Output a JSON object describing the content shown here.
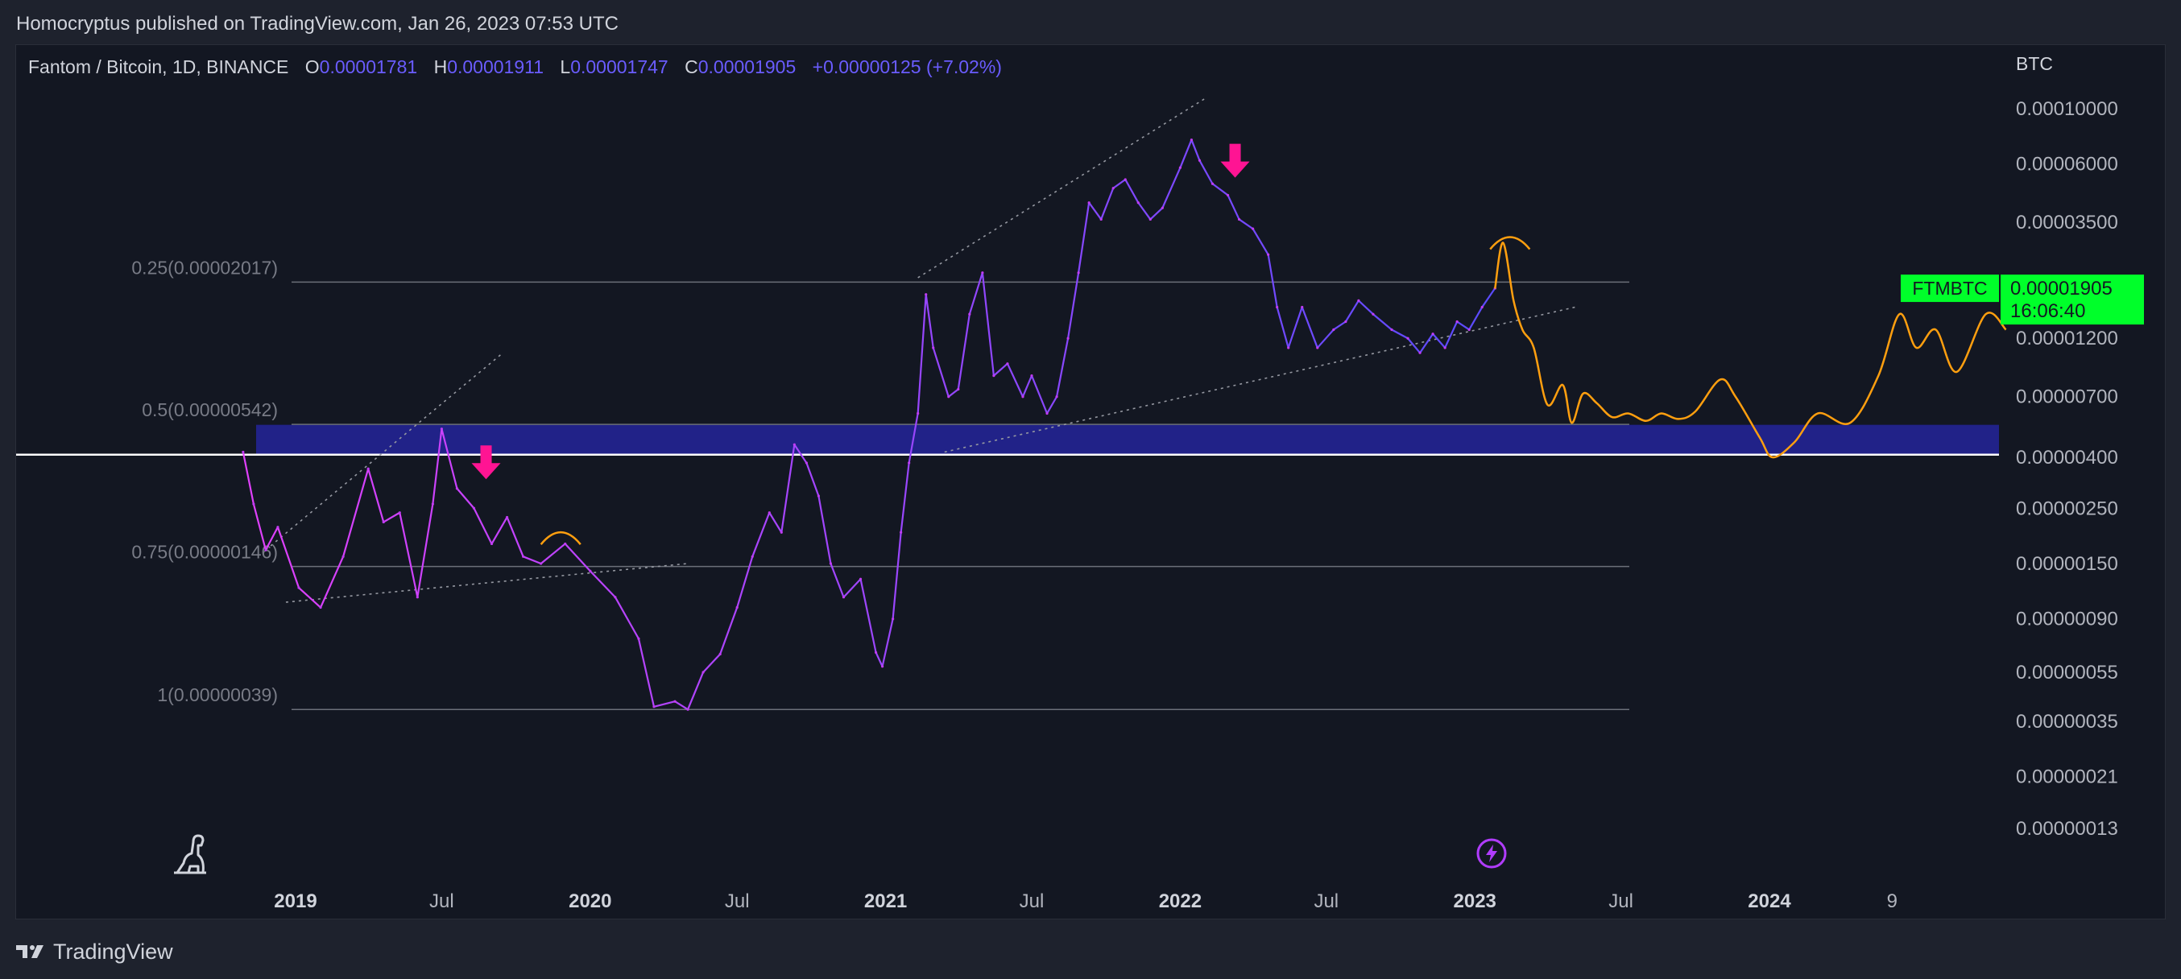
{
  "published_by": "Homocryptus published on TradingView.com, Jan 26, 2023 07:53 UTC",
  "legend": {
    "symbol": "Fantom / Bitcoin, 1D, BINANCE",
    "o_label": "O",
    "o_value": "0.00001781",
    "h_label": "H",
    "h_value": "0.00001911",
    "l_label": "L",
    "l_value": "0.00001747",
    "c_label": "C",
    "c_value": "0.00001905",
    "change": "+0.00000125 (+7.02%)"
  },
  "footer": {
    "brand": "TradingView"
  },
  "chart_data": {
    "type": "line",
    "scale": "log",
    "y_unit": "BTC",
    "y_ticks": [
      "0.00010000",
      "0.00006000",
      "0.00003500",
      "0.00001200",
      "0.00000700",
      "0.00000400",
      "0.00000250",
      "0.00000150",
      "0.00000090",
      "0.00000055",
      "0.00000035",
      "0.00000021",
      "0.00000013"
    ],
    "x_ticks": [
      {
        "label": "2019",
        "date": "2019-01-01",
        "bold": true
      },
      {
        "label": "Jul",
        "date": "2019-07-01",
        "bold": false
      },
      {
        "label": "2020",
        "date": "2020-01-01",
        "bold": true
      },
      {
        "label": "Jul",
        "date": "2020-07-01",
        "bold": false
      },
      {
        "label": "2021",
        "date": "2021-01-01",
        "bold": true
      },
      {
        "label": "Jul",
        "date": "2021-07-01",
        "bold": false
      },
      {
        "label": "2022",
        "date": "2022-01-01",
        "bold": true
      },
      {
        "label": "Jul",
        "date": "2022-07-01",
        "bold": false
      },
      {
        "label": "2023",
        "date": "2023-01-01",
        "bold": true
      },
      {
        "label": "Jul",
        "date": "2023-07-01",
        "bold": false
      },
      {
        "label": "2024",
        "date": "2024-01-01",
        "bold": true
      },
      {
        "label": "9",
        "date": "2024-06-01",
        "bold": false
      }
    ],
    "price_label": {
      "symbol": "FTMBTC",
      "value": "0.00001905",
      "countdown": "16:06:40",
      "color": "#00ff2a"
    },
    "fib_levels": [
      {
        "label": "0.25(0.00002017)",
        "price": 2.017e-05
      },
      {
        "label": "0.5(0.00000542)",
        "price": 5.42e-06
      },
      {
        "label": "0.75(0.00000146)",
        "price": 1.46e-06
      },
      {
        "label": "1(0.00000039)",
        "price": 3.9e-07
      }
    ],
    "horizontal_line": 4.1e-06,
    "support_zone": [
      4.1e-06,
      5.4e-06
    ],
    "series": [
      {
        "kind": "price",
        "color_start": "#e040fb",
        "color_end": "#5a4bff",
        "points": [
          [
            "2018-10-28",
            4.2e-06
          ],
          [
            "2018-11-10",
            2.6e-06
          ],
          [
            "2018-11-25",
            1.7e-06
          ],
          [
            "2018-12-10",
            2.1e-06
          ],
          [
            "2019-01-05",
            1.2e-06
          ],
          [
            "2019-02-01",
            1e-06
          ],
          [
            "2019-03-01",
            1.6e-06
          ],
          [
            "2019-04-01",
            3.6e-06
          ],
          [
            "2019-04-20",
            2.2e-06
          ],
          [
            "2019-05-10",
            2.4e-06
          ],
          [
            "2019-06-01",
            1.1e-06
          ],
          [
            "2019-06-20",
            2.6e-06
          ],
          [
            "2019-07-01",
            5.2e-06
          ],
          [
            "2019-07-20",
            3e-06
          ],
          [
            "2019-08-10",
            2.5e-06
          ],
          [
            "2019-09-01",
            1.8e-06
          ],
          [
            "2019-09-20",
            2.3e-06
          ],
          [
            "2019-10-10",
            1.6e-06
          ],
          [
            "2019-11-01",
            1.5e-06
          ],
          [
            "2019-12-01",
            1.8e-06
          ],
          [
            "2020-01-01",
            1.4e-06
          ],
          [
            "2020-02-01",
            1.1e-06
          ],
          [
            "2020-03-01",
            7.5e-07
          ],
          [
            "2020-03-20",
            4e-07
          ],
          [
            "2020-04-15",
            4.2e-07
          ],
          [
            "2020-05-01",
            3.9e-07
          ],
          [
            "2020-05-20",
            5.5e-07
          ],
          [
            "2020-06-10",
            6.5e-07
          ],
          [
            "2020-07-01",
            1e-06
          ],
          [
            "2020-07-20",
            1.6e-06
          ],
          [
            "2020-08-10",
            2.4e-06
          ],
          [
            "2020-08-25",
            2e-06
          ],
          [
            "2020-09-10",
            4.5e-06
          ],
          [
            "2020-09-25",
            3.8e-06
          ],
          [
            "2020-10-10",
            2.8e-06
          ],
          [
            "2020-10-25",
            1.5e-06
          ],
          [
            "2020-11-10",
            1.1e-06
          ],
          [
            "2020-12-01",
            1.3e-06
          ],
          [
            "2020-12-20",
            6.6e-07
          ],
          [
            "2020-12-28",
            5.8e-07
          ],
          [
            "2021-01-10",
            9e-07
          ],
          [
            "2021-01-20",
            2e-06
          ],
          [
            "2021-01-30",
            3.8e-06
          ],
          [
            "2021-02-10",
            6e-06
          ],
          [
            "2021-02-20",
            1.8e-05
          ],
          [
            "2021-03-01",
            1.1e-05
          ],
          [
            "2021-03-20",
            7e-06
          ],
          [
            "2021-04-01",
            7.5e-06
          ],
          [
            "2021-04-15",
            1.5e-05
          ],
          [
            "2021-05-01",
            2.2e-05
          ],
          [
            "2021-05-15",
            8.5e-06
          ],
          [
            "2021-06-01",
            9.5e-06
          ],
          [
            "2021-06-20",
            7e-06
          ],
          [
            "2021-07-01",
            8.5e-06
          ],
          [
            "2021-07-20",
            6e-06
          ],
          [
            "2021-08-01",
            7e-06
          ],
          [
            "2021-08-15",
            1.2e-05
          ],
          [
            "2021-08-28",
            2.2e-05
          ],
          [
            "2021-09-10",
            4.2e-05
          ],
          [
            "2021-09-25",
            3.6e-05
          ],
          [
            "2021-10-10",
            4.8e-05
          ],
          [
            "2021-10-25",
            5.2e-05
          ],
          [
            "2021-11-10",
            4.2e-05
          ],
          [
            "2021-11-25",
            3.6e-05
          ],
          [
            "2021-12-10",
            4e-05
          ],
          [
            "2022-01-01",
            5.8e-05
          ],
          [
            "2022-01-15",
            7.5e-05
          ],
          [
            "2022-01-25",
            6.2e-05
          ],
          [
            "2022-02-10",
            5e-05
          ],
          [
            "2022-03-01",
            4.5e-05
          ],
          [
            "2022-03-15",
            3.6e-05
          ],
          [
            "2022-04-01",
            3.3e-05
          ],
          [
            "2022-04-20",
            2.6e-05
          ],
          [
            "2022-05-01",
            1.6e-05
          ],
          [
            "2022-05-15",
            1.1e-05
          ],
          [
            "2022-06-01",
            1.6e-05
          ],
          [
            "2022-06-20",
            1.1e-05
          ],
          [
            "2022-07-10",
            1.3e-05
          ],
          [
            "2022-07-25",
            1.4e-05
          ],
          [
            "2022-08-10",
            1.7e-05
          ],
          [
            "2022-08-28",
            1.5e-05
          ],
          [
            "2022-09-20",
            1.3e-05
          ],
          [
            "2022-10-10",
            1.2e-05
          ],
          [
            "2022-10-25",
            1.05e-05
          ],
          [
            "2022-11-10",
            1.25e-05
          ],
          [
            "2022-11-25",
            1.1e-05
          ],
          [
            "2022-12-10",
            1.4e-05
          ],
          [
            "2022-12-25",
            1.3e-05
          ],
          [
            "2023-01-10",
            1.6e-05
          ],
          [
            "2023-01-26",
            1.905e-05
          ]
        ]
      },
      {
        "kind": "projection",
        "color": "#ff9f0f",
        "points": [
          [
            "2023-01-26",
            1.9e-05
          ],
          [
            "2023-02-05",
            2.9e-05
          ],
          [
            "2023-02-18",
            1.7e-05
          ],
          [
            "2023-03-01",
            1.3e-05
          ],
          [
            "2023-03-15",
            1.1e-05
          ],
          [
            "2023-04-01",
            6.5e-06
          ],
          [
            "2023-04-20",
            7.8e-06
          ],
          [
            "2023-05-01",
            5.5e-06
          ],
          [
            "2023-05-15",
            7.2e-06
          ],
          [
            "2023-06-01",
            6.6e-06
          ],
          [
            "2023-06-20",
            5.8e-06
          ],
          [
            "2023-07-10",
            6e-06
          ],
          [
            "2023-08-01",
            5.6e-06
          ],
          [
            "2023-08-20",
            6e-06
          ],
          [
            "2023-09-10",
            5.7e-06
          ],
          [
            "2023-10-01",
            6.1e-06
          ],
          [
            "2023-11-01",
            8.2e-06
          ],
          [
            "2023-11-20",
            7e-06
          ],
          [
            "2023-12-20",
            4.8e-06
          ],
          [
            "2024-01-05",
            4e-06
          ],
          [
            "2024-02-01",
            4.6e-06
          ],
          [
            "2024-03-01",
            6e-06
          ],
          [
            "2024-04-10",
            5.5e-06
          ],
          [
            "2024-05-15",
            8.5e-06
          ],
          [
            "2024-06-10",
            1.5e-05
          ],
          [
            "2024-07-01",
            1.1e-05
          ],
          [
            "2024-07-25",
            1.3e-05
          ],
          [
            "2024-08-20",
            8.8e-06
          ],
          [
            "2024-09-25",
            1.5e-05
          ],
          [
            "2024-10-20",
            1.3e-05
          ]
        ]
      }
    ],
    "trendlines": [
      {
        "from": [
          "2018-11-25",
          1.7e-06
        ],
        "to": [
          "2019-09-15",
          1.05e-05
        ]
      },
      {
        "from": [
          "2018-12-20",
          1.05e-06
        ],
        "to": [
          "2020-05-01",
          1.5e-06
        ]
      },
      {
        "from": [
          "2021-02-10",
          2.1e-05
        ],
        "to": [
          "2022-02-01",
          0.00011
        ]
      },
      {
        "from": [
          "2021-03-15",
          4.2e-06
        ],
        "to": [
          "2023-05-05",
          1.6e-05
        ]
      }
    ],
    "arrows": [
      {
        "date": "2019-08-25",
        "price": 2.9e-06
      },
      {
        "date": "2022-03-10",
        "price": 4.7e-05
      }
    ],
    "arcs": [
      {
        "from": "2019-11-01",
        "to": "2019-12-20",
        "price": 1.9e-06
      },
      {
        "from": "2023-01-20",
        "to": "2023-03-10",
        "price": 2.9e-05
      }
    ]
  }
}
